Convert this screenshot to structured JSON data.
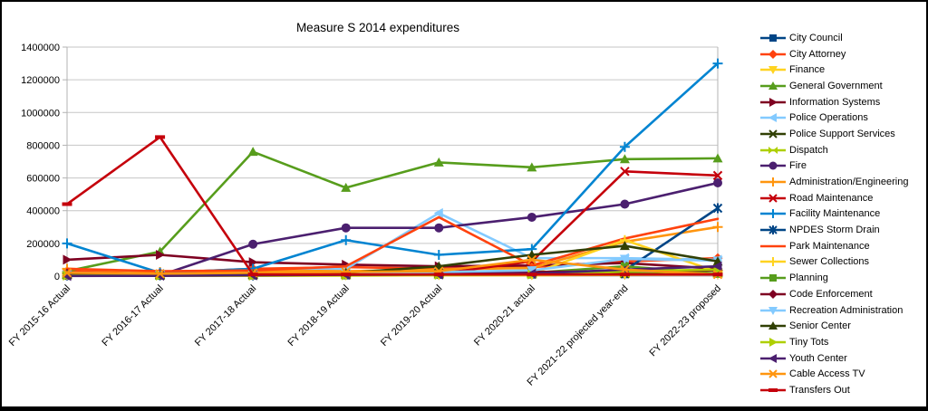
{
  "window": {
    "background": "#ffffff",
    "frame_border": "#000000"
  },
  "chart_data": {
    "type": "line",
    "title": "Measure S 2014 expenditures",
    "xlabel": "",
    "ylabel": "",
    "ylim": [
      0,
      1400000
    ],
    "y_tick_step": 200000,
    "y_ticks": [
      "0",
      "200000",
      "400000",
      "600000",
      "800000",
      "1000000",
      "1200000",
      "1400000"
    ],
    "grid": true,
    "legend_position": "right",
    "axis_color": "#b3b3b3",
    "grid_color": "#c6c6c6",
    "categories": [
      "FY 2015-16 Actual",
      "FY 2016-17 Actual",
      "FY 2017-18 Actual",
      "FY 2018-19 Actual",
      "FY 2019-20 Actual",
      "FY 2020-21 actual",
      "FY 2021-22 projected year-end",
      "FY 2022-23 proposed"
    ],
    "series": [
      {
        "name": "City Council",
        "color": "#004586",
        "marker": "square",
        "values": [
          5000,
          4000,
          4000,
          5000,
          8000,
          10000,
          12000,
          15000
        ]
      },
      {
        "name": "City Attorney",
        "color": "#ff420e",
        "marker": "diamond",
        "values": [
          30000,
          20000,
          45000,
          55000,
          45000,
          55000,
          90000,
          110000
        ]
      },
      {
        "name": "Finance",
        "color": "#ffd320",
        "marker": "tri-down",
        "values": [
          3000,
          2000,
          2000,
          3000,
          5000,
          5000,
          8000,
          10000
        ]
      },
      {
        "name": "General Government",
        "color": "#579d1c",
        "marker": "tri-up",
        "values": [
          30000,
          150000,
          760000,
          540000,
          695000,
          665000,
          715000,
          720000
        ]
      },
      {
        "name": "Information Systems",
        "color": "#7e0021",
        "marker": "tri-right",
        "values": [
          100000,
          130000,
          85000,
          70000,
          60000,
          65000,
          80000,
          45000
        ]
      },
      {
        "name": "Police Operations",
        "color": "#83caff",
        "marker": "tri-left",
        "values": [
          20000,
          15000,
          30000,
          45000,
          385000,
          110000,
          110000,
          100000
        ]
      },
      {
        "name": "Police Support Services",
        "color": "#314004",
        "marker": "x",
        "values": [
          5000,
          4000,
          5000,
          8000,
          10000,
          12000,
          15000,
          18000
        ]
      },
      {
        "name": "Dispatch",
        "color": "#aecf00",
        "marker": "bowtie",
        "values": [
          5000,
          4000,
          5000,
          5000,
          8000,
          10000,
          12000,
          15000
        ]
      },
      {
        "name": "Fire",
        "color": "#4b1f6f",
        "marker": "circle",
        "values": [
          2000,
          5000,
          195000,
          295000,
          295000,
          360000,
          440000,
          570000
        ]
      },
      {
        "name": "Administration/Engineering",
        "color": "#ff950e",
        "marker": "plus",
        "values": [
          45000,
          25000,
          35000,
          30000,
          40000,
          50000,
          210000,
          300000
        ]
      },
      {
        "name": "Road Maintenance",
        "color": "#c5000b",
        "marker": "x",
        "values": [
          10000,
          5000,
          5000,
          10000,
          15000,
          90000,
          640000,
          615000
        ]
      },
      {
        "name": "Facility Maintenance",
        "color": "#0084d1",
        "marker": "plus",
        "values": [
          200000,
          20000,
          45000,
          220000,
          130000,
          165000,
          790000,
          1300000
        ]
      },
      {
        "name": "NPDES Storm Drain",
        "color": "#004586",
        "marker": "star",
        "values": [
          5000,
          5000,
          5000,
          10000,
          15000,
          20000,
          35000,
          415000
        ]
      },
      {
        "name": "Park Maintenance",
        "color": "#ff420e",
        "marker": "none",
        "values": [
          45000,
          30000,
          35000,
          60000,
          360000,
          65000,
          230000,
          350000
        ]
      },
      {
        "name": "Sewer Collections",
        "color": "#ffd320",
        "marker": "plus",
        "values": [
          10000,
          8000,
          8000,
          10000,
          12000,
          15000,
          220000,
          25000
        ]
      },
      {
        "name": "Planning",
        "color": "#579d1c",
        "marker": "square",
        "values": [
          8000,
          5000,
          8000,
          12000,
          15000,
          20000,
          60000,
          15000
        ]
      },
      {
        "name": "Code Enforcement",
        "color": "#7e0021",
        "marker": "diamond",
        "values": [
          15000,
          10000,
          10000,
          15000,
          20000,
          25000,
          30000,
          35000
        ]
      },
      {
        "name": "Recreation Administration",
        "color": "#83caff",
        "marker": "tri-down",
        "values": [
          10000,
          8000,
          10000,
          15000,
          25000,
          35000,
          105000,
          95000
        ]
      },
      {
        "name": "Senior Center",
        "color": "#314004",
        "marker": "tri-up",
        "values": [
          8000,
          5000,
          10000,
          20000,
          60000,
          130000,
          185000,
          90000
        ]
      },
      {
        "name": "Tiny Tots",
        "color": "#aecf00",
        "marker": "tri-right",
        "values": [
          3000,
          3000,
          3000,
          5000,
          8000,
          10000,
          30000,
          40000
        ]
      },
      {
        "name": "Youth Center",
        "color": "#4b1f6f",
        "marker": "tri-left",
        "values": [
          1000,
          2000,
          5000,
          8000,
          10000,
          15000,
          40000,
          60000
        ]
      },
      {
        "name": "Cable Access TV",
        "color": "#ff950e",
        "marker": "x",
        "values": [
          20000,
          15000,
          20000,
          25000,
          30000,
          100000,
          40000,
          10000
        ]
      },
      {
        "name": "Transfers Out",
        "color": "#c5000b",
        "marker": "hbar",
        "values": [
          440000,
          850000,
          10000,
          10000,
          10000,
          10000,
          10000,
          10000
        ]
      }
    ]
  }
}
